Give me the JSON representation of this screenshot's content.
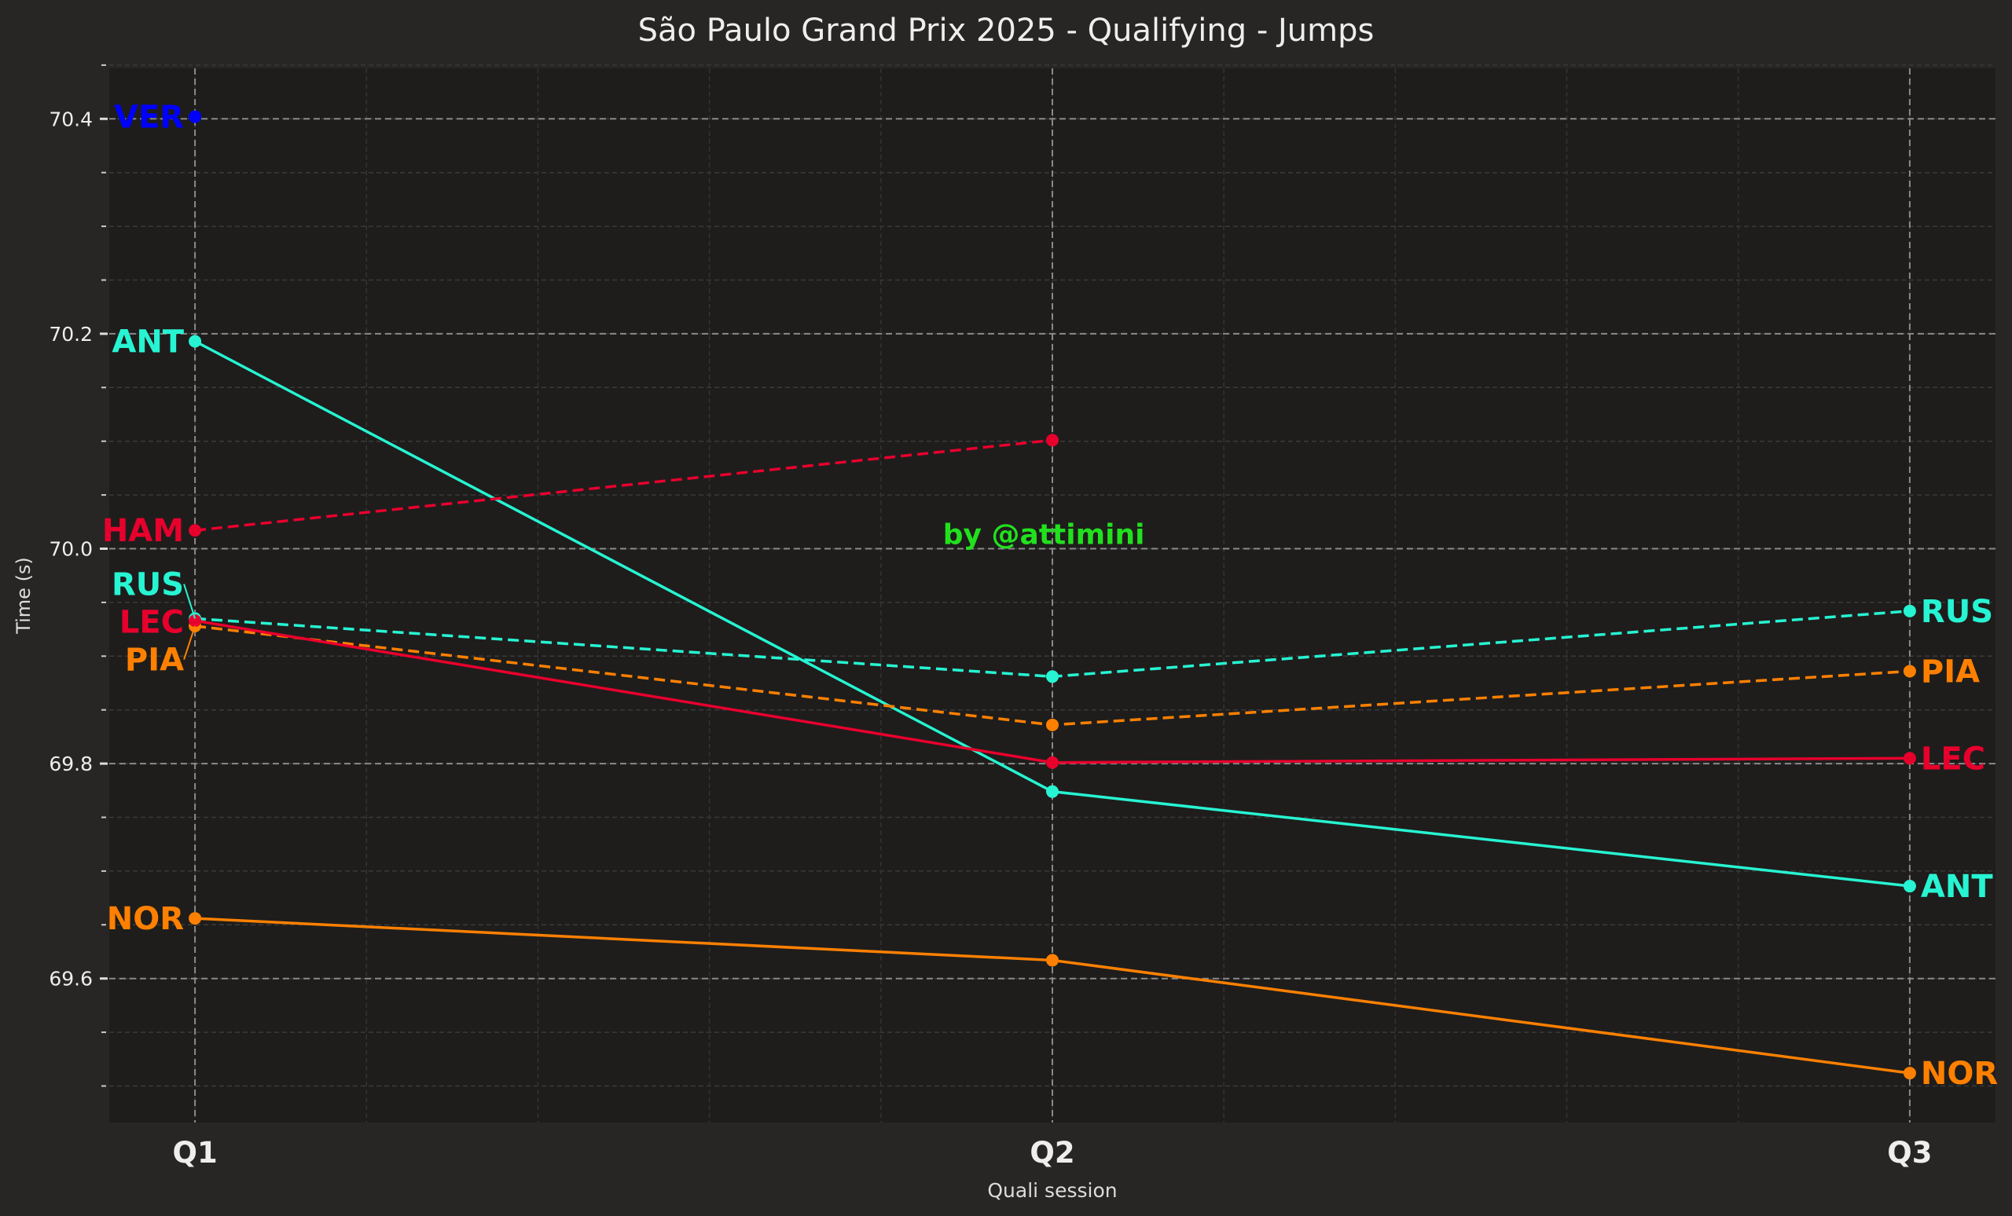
{
  "chart_data": {
    "type": "line",
    "title": "São Paulo Grand Prix 2025 - Qualifying - Jumps",
    "xlabel": "Quali session",
    "ylabel": "Time (s)",
    "categories": [
      "Q1",
      "Q2",
      "Q3"
    ],
    "xlim": [
      -0.1,
      2.1
    ],
    "ylim": [
      69.466,
      70.447
    ],
    "yticks": [
      "69.6",
      "69.8",
      "70.0",
      "70.2",
      "70.4"
    ],
    "grid": true,
    "watermark": "by @attimini",
    "watermark_color": "#22e01e",
    "series": [
      {
        "name": "VER",
        "color": "#0000ff",
        "dash": false,
        "values": [
          70.402,
          null,
          null
        ]
      },
      {
        "name": "ANT",
        "color": "#27f4d2",
        "dash": false,
        "values": [
          70.193,
          69.774,
          69.686
        ]
      },
      {
        "name": "HAM",
        "color": "#e8002d",
        "dash": true,
        "values": [
          70.017,
          70.101,
          null
        ]
      },
      {
        "name": "RUS",
        "color": "#27f4d2",
        "dash": true,
        "values": [
          69.935,
          69.881,
          69.942
        ]
      },
      {
        "name": "PIA",
        "color": "#ff8000",
        "dash": true,
        "values": [
          69.928,
          69.836,
          69.886
        ]
      },
      {
        "name": "LEC",
        "color": "#e8002d",
        "dash": false,
        "values": [
          69.933,
          69.801,
          69.805
        ]
      },
      {
        "name": "NOR",
        "color": "#ff8000",
        "dash": false,
        "values": [
          69.656,
          69.617,
          69.512
        ]
      }
    ]
  }
}
